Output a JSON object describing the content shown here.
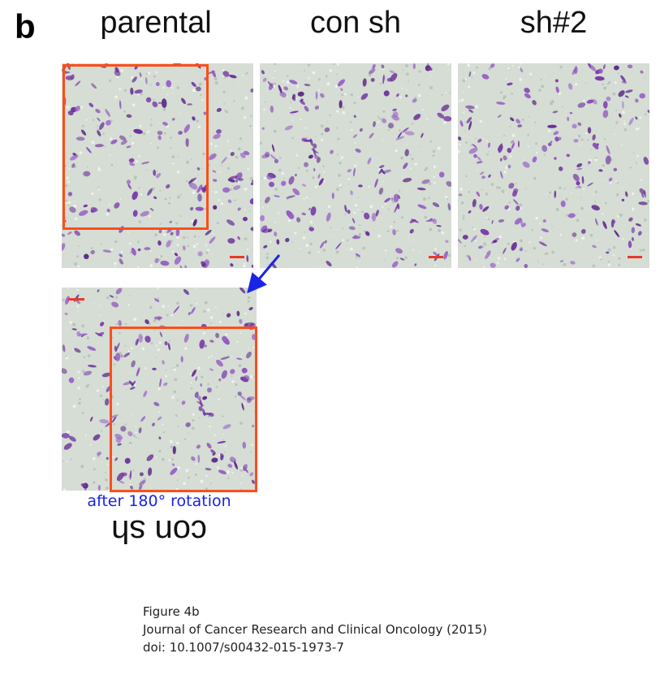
{
  "panel": {
    "letter": "b",
    "column_labels": [
      "parental",
      "con sh",
      "sh#2"
    ]
  },
  "rotated_panel": {
    "caption": "after 180° rotation",
    "flipped_label": "con sh"
  },
  "citation": {
    "line1": "Figure 4b",
    "line2": "Journal of Cancer Research and Clinical Oncology (2015)",
    "line3": "doi: 10.1007/s00432-015-1973-7"
  },
  "colors": {
    "highlight_box": "#ff4d1a",
    "arrow_and_caption": "#1a24e6",
    "cell_stain": "#7a3aa8",
    "scale_bar": "#e83a2a"
  }
}
